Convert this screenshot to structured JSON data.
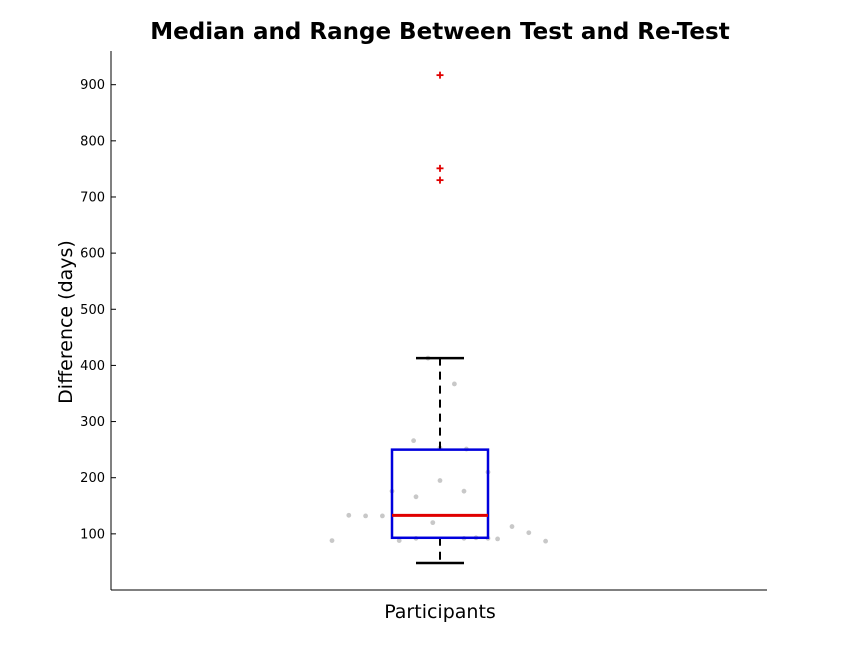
{
  "chart_data": {
    "type": "boxplot",
    "title": "Median and Range Between Test and Re-Test",
    "xlabel": "Participants",
    "ylabel": "Difference (days)",
    "ylim": [
      0,
      960
    ],
    "yticks": [
      100,
      200,
      300,
      400,
      500,
      600,
      700,
      800,
      900
    ],
    "box": {
      "median": 133,
      "q1": 93,
      "q3": 250,
      "whisker_low": 48,
      "whisker_high": 413
    },
    "outliers": [
      917,
      751,
      730
    ],
    "points": [
      {
        "jitter": -0.45,
        "value": 88
      },
      {
        "jitter": -0.38,
        "value": 133
      },
      {
        "jitter": -0.31,
        "value": 132
      },
      {
        "jitter": -0.24,
        "value": 132
      },
      {
        "jitter": -0.2,
        "value": 176
      },
      {
        "jitter": -0.17,
        "value": 88
      },
      {
        "jitter": -0.11,
        "value": 266
      },
      {
        "jitter": -0.1,
        "value": 166
      },
      {
        "jitter": -0.1,
        "value": 92
      },
      {
        "jitter": -0.05,
        "value": 413
      },
      {
        "jitter": -0.03,
        "value": 120
      },
      {
        "jitter": 0.0,
        "value": 195
      },
      {
        "jitter": 0.0,
        "value": 253
      },
      {
        "jitter": 0.06,
        "value": 367
      },
      {
        "jitter": 0.1,
        "value": 176
      },
      {
        "jitter": 0.1,
        "value": 92
      },
      {
        "jitter": 0.11,
        "value": 251
      },
      {
        "jitter": 0.15,
        "value": 93
      },
      {
        "jitter": 0.2,
        "value": 92
      },
      {
        "jitter": 0.2,
        "value": 210
      },
      {
        "jitter": 0.24,
        "value": 91
      },
      {
        "jitter": 0.3,
        "value": 113
      },
      {
        "jitter": 0.37,
        "value": 102
      },
      {
        "jitter": 0.44,
        "value": 87
      }
    ],
    "colors": {
      "box": "#0000dd",
      "median": "#e00000",
      "whisker": "#000000",
      "outlier": "#e00000",
      "points": "#c8c8c8"
    }
  }
}
